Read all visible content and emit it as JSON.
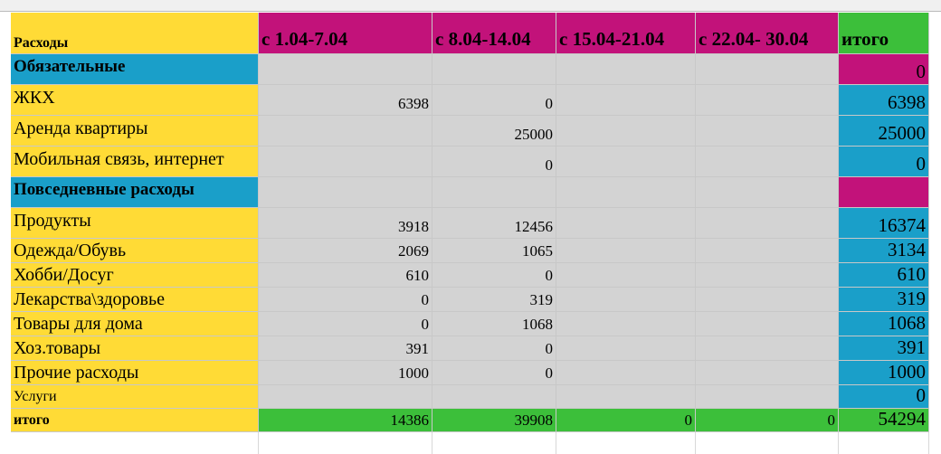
{
  "table": {
    "header": [
      "Расходы",
      "с 1.04-7.04",
      "с 8.04-14.04",
      "с 15.04-21.04",
      "с 22.04- 30.04",
      "итого"
    ],
    "rows": [
      {
        "label": "Обязательные",
        "kind": "section",
        "cells": [
          null,
          null,
          null,
          null,
          0
        ]
      },
      {
        "label": "ЖКХ",
        "kind": "item",
        "cells": [
          6398,
          0,
          null,
          null,
          6398
        ]
      },
      {
        "label": "Аренда квартиры",
        "kind": "item",
        "cells": [
          null,
          25000,
          null,
          null,
          25000
        ]
      },
      {
        "label": "Мобильная связь, интернет",
        "kind": "item",
        "cells": [
          null,
          0,
          null,
          null,
          0
        ]
      },
      {
        "label": "Повседневные расходы",
        "kind": "section",
        "cells": [
          null,
          null,
          null,
          null,
          null
        ]
      },
      {
        "label": "Продукты",
        "kind": "item",
        "cells": [
          3918,
          12456,
          null,
          null,
          16374
        ]
      },
      {
        "label": "Одежда/Обувь",
        "kind": "item",
        "cells": [
          2069,
          1065,
          null,
          null,
          3134
        ]
      },
      {
        "label": "Хобби/Досуг",
        "kind": "item",
        "cells": [
          610,
          0,
          null,
          null,
          610
        ]
      },
      {
        "label": "Лекарства\\здоровье",
        "kind": "item",
        "cells": [
          0,
          319,
          null,
          null,
          319
        ]
      },
      {
        "label": "Товары для дома",
        "kind": "item",
        "cells": [
          0,
          1068,
          null,
          null,
          1068
        ]
      },
      {
        "label": "Хоз.товары",
        "kind": "item",
        "cells": [
          391,
          0,
          null,
          null,
          391
        ]
      },
      {
        "label": "Прочие расходы",
        "kind": "item",
        "cells": [
          1000,
          0,
          null,
          null,
          1000
        ]
      },
      {
        "label": "Услуги",
        "kind": "item",
        "cells": [
          null,
          null,
          null,
          null,
          0
        ]
      },
      {
        "label": "итого",
        "kind": "total",
        "cells": [
          14386,
          39908,
          0,
          0,
          54294
        ]
      }
    ]
  }
}
